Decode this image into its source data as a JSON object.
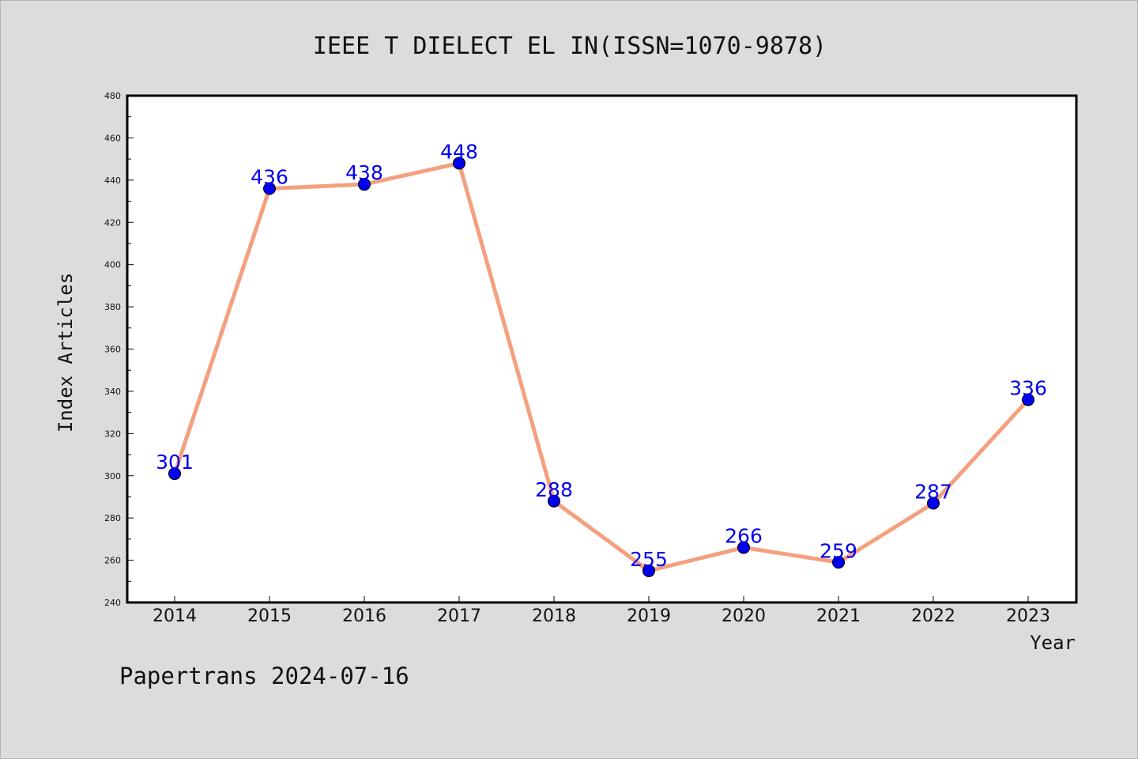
{
  "chart_data": {
    "type": "line",
    "title": "IEEE T DIELECT EL IN(ISSN=1070-9878)",
    "xlabel": "Year",
    "ylabel": "Index Articles",
    "categories": [
      "2014",
      "2015",
      "2016",
      "2017",
      "2018",
      "2019",
      "2020",
      "2021",
      "2022",
      "2023"
    ],
    "values": [
      301,
      436,
      438,
      448,
      288,
      255,
      266,
      259,
      287,
      336
    ],
    "ylim": [
      240,
      480
    ],
    "yticks": [
      240,
      260,
      280,
      300,
      320,
      340,
      360,
      380,
      400,
      420,
      440,
      460,
      480
    ],
    "grid": false,
    "line_color": "#f4a07e",
    "marker_color": "#0000ee",
    "label_color": "#0000ee"
  },
  "footer": "Papertrans 2024-07-16",
  "colors": {
    "background": "#dcdcdc",
    "plot_background": "#ffffff"
  }
}
